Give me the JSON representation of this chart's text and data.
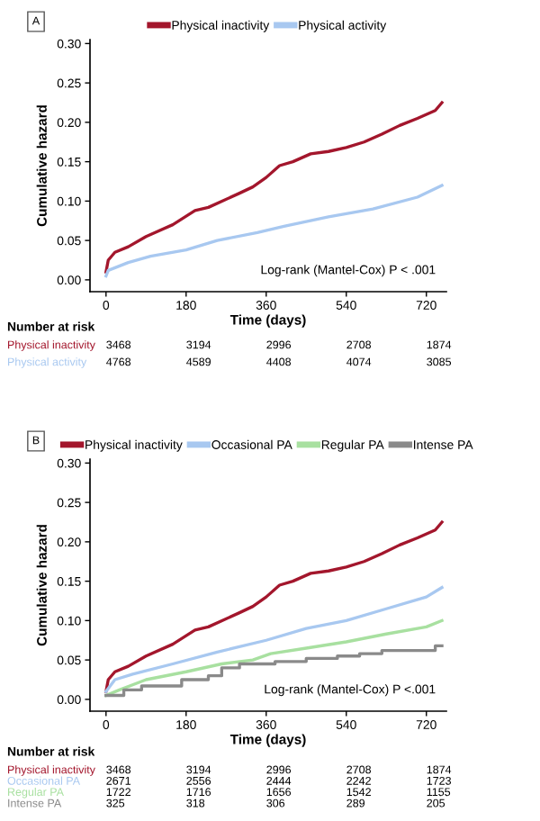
{
  "chart_data": [
    {
      "type": "line",
      "title": "A",
      "xlabel": "Time (days)",
      "ylabel": "Cumulative hazard",
      "legend": "top",
      "grid": false,
      "xlim": [
        -36,
        765
      ],
      "xticks": [
        0,
        180,
        360,
        540,
        720
      ],
      "ylim": [
        -0.015,
        0.305
      ],
      "yticks": [
        {
          "value": 0,
          "label": "0.00"
        },
        {
          "value": 0.05,
          "label": "0.05"
        },
        {
          "value": 0.1,
          "label": "0.10"
        },
        {
          "value": 0.15,
          "label": "0.15"
        },
        {
          "value": 0.2,
          "label": "0.20"
        },
        {
          "value": 0.25,
          "label": "0.25"
        },
        {
          "value": 0.3,
          "label": "0.30"
        }
      ],
      "series": [
        {
          "name": "Physical inactivity",
          "color": "#a3162c",
          "x": [
            0,
            5,
            20,
            50,
            90,
            150,
            200,
            230,
            300,
            330,
            360,
            390,
            420,
            460,
            500,
            540,
            580,
            620,
            660,
            700,
            740,
            755
          ],
          "values": [
            0.01,
            0.025,
            0.035,
            0.042,
            0.055,
            0.07,
            0.088,
            0.092,
            0.11,
            0.118,
            0.13,
            0.145,
            0.15,
            0.16,
            0.163,
            0.168,
            0.175,
            0.185,
            0.196,
            0.205,
            0.215,
            0.225
          ]
        },
        {
          "name": "Physical activity",
          "color": "#a8c8f0",
          "x": [
            0,
            5,
            50,
            100,
            180,
            250,
            340,
            400,
            500,
            600,
            700,
            755
          ],
          "values": [
            0.005,
            0.012,
            0.022,
            0.03,
            0.038,
            0.05,
            0.06,
            0.068,
            0.08,
            0.09,
            0.105,
            0.12
          ]
        }
      ],
      "annotations": [
        "Log-rank (Mantel-Cox) P < .001",
        "Number at risk",
        "Physical inactivity",
        "3468",
        "3194",
        "2996",
        "2708",
        "1874",
        "Physical activity",
        "4768",
        "4589",
        "4408",
        "4074",
        "3085"
      ]
    },
    {
      "type": "line",
      "title": "B",
      "xlabel": "Time (days)",
      "ylabel": "Cumulative hazard",
      "legend": "top",
      "grid": false,
      "xlim": [
        -36,
        765
      ],
      "xticks": [
        0,
        180,
        360,
        540,
        720
      ],
      "ylim": [
        -0.015,
        0.305
      ],
      "yticks": [
        {
          "value": 0,
          "label": "0.00"
        },
        {
          "value": 0.05,
          "label": "0.05"
        },
        {
          "value": 0.1,
          "label": "0.10"
        },
        {
          "value": 0.15,
          "label": "0.15"
        },
        {
          "value": 0.2,
          "label": "0.20"
        },
        {
          "value": 0.25,
          "label": "0.25"
        },
        {
          "value": 0.3,
          "label": "0.30"
        }
      ],
      "series": [
        {
          "name": "Physical inactivity",
          "color": "#a3162c",
          "x": [
            0,
            5,
            20,
            50,
            90,
            150,
            200,
            230,
            300,
            330,
            360,
            390,
            420,
            460,
            500,
            540,
            580,
            620,
            660,
            700,
            740,
            755
          ],
          "values": [
            0.01,
            0.025,
            0.035,
            0.042,
            0.055,
            0.07,
            0.088,
            0.092,
            0.11,
            0.118,
            0.13,
            0.145,
            0.15,
            0.16,
            0.163,
            0.168,
            0.175,
            0.185,
            0.196,
            0.205,
            0.215,
            0.225
          ]
        },
        {
          "name": "Occasional PA",
          "color": "#a8c8f0",
          "x": [
            0,
            20,
            60,
            150,
            250,
            360,
            450,
            540,
            630,
            720,
            755
          ],
          "values": [
            0.01,
            0.025,
            0.032,
            0.045,
            0.06,
            0.075,
            0.09,
            0.1,
            0.115,
            0.13,
            0.142
          ]
        },
        {
          "name": "Regular PA",
          "color": "#a8e0a0",
          "x": [
            0,
            30,
            90,
            180,
            260,
            330,
            370,
            450,
            540,
            630,
            720,
            755
          ],
          "values": [
            0.005,
            0.012,
            0.025,
            0.035,
            0.045,
            0.05,
            0.058,
            0.065,
            0.073,
            0.083,
            0.092,
            0.1
          ]
        },
        {
          "name": "Intense PA",
          "color": "#8a8a8a",
          "type": "step",
          "x": [
            0,
            40,
            80,
            170,
            230,
            260,
            300,
            380,
            450,
            520,
            570,
            620,
            650,
            740,
            755
          ],
          "values": [
            0.005,
            0.012,
            0.017,
            0.025,
            0.03,
            0.04,
            0.045,
            0.048,
            0.052,
            0.055,
            0.058,
            0.062,
            0.062,
            0.068,
            0.068
          ]
        }
      ],
      "annotations": [
        "Log-rank (Mantel-Cox) P <.001",
        "Number at risk",
        "Physical inactivity",
        "3468",
        "3194",
        "2996",
        "2708",
        "1874",
        "Occasional PA",
        "2671",
        "2556",
        "2444",
        "2242",
        "1723",
        "Regular PA",
        "1722",
        "1716",
        "1656",
        "1542",
        "1155",
        "Intense PA",
        "325",
        "318",
        "306",
        "289",
        "205"
      ]
    }
  ]
}
